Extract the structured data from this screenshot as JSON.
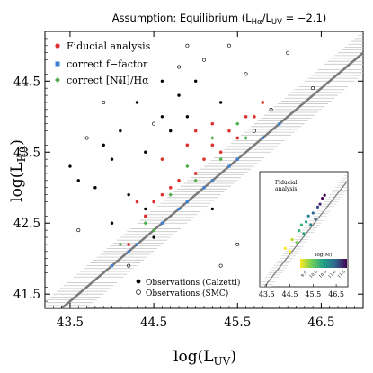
{
  "chart_data": [
    {
      "type": "scatter",
      "title": {
        "prefix": "Assumption: Equilibrium (L",
        "sub": "Hα",
        "mid": "/L",
        "sub2": "UV",
        "suffix": " = −2.1)"
      },
      "xlabel": {
        "main": "log(L",
        "sub": "UV",
        "close": ")"
      },
      "ylabel": {
        "main": "log(L",
        "sub": "Hα",
        "close": ")"
      },
      "xlim": [
        43.2,
        47.0
      ],
      "ylim": [
        41.3,
        45.2
      ],
      "xticks": [
        "43.5",
        "44.5",
        "45.5",
        "46.5"
      ],
      "yticks": [
        "41.5",
        "42.5",
        "43.5",
        "44.5"
      ],
      "relation_line": {
        "slope": 1,
        "offset": -2.1,
        "band_halfwidth": 0.3
      },
      "legend_position": "top-left",
      "series": [
        {
          "name": "Fiducial analysis",
          "marker": "circle",
          "color": "#e0302a",
          "points": [
            [
              44.2,
              42.2
            ],
            [
              44.4,
              42.6
            ],
            [
              44.6,
              42.9
            ],
            [
              44.8,
              43.1
            ],
            [
              45.0,
              43.2
            ],
            [
              45.2,
              43.6
            ],
            [
              45.4,
              43.8
            ],
            [
              45.6,
              44.0
            ],
            [
              45.0,
              43.8
            ],
            [
              44.6,
              43.4
            ],
            [
              44.9,
              43.6
            ],
            [
              45.3,
              43.5
            ],
            [
              45.5,
              43.7
            ],
            [
              44.7,
              43.0
            ],
            [
              45.1,
              43.4
            ],
            [
              45.7,
              44.0
            ],
            [
              45.8,
              44.2
            ],
            [
              44.3,
              42.8
            ],
            [
              44.5,
              42.8
            ],
            [
              45.2,
              43.9
            ]
          ]
        },
        {
          "name": "correct f−factor",
          "marker": "square",
          "color": "#3d7fd0",
          "points": [
            [
              44.0,
              41.9
            ],
            [
              44.3,
              42.2
            ],
            [
              44.6,
              42.5
            ],
            [
              44.9,
              42.8
            ],
            [
              45.2,
              43.1
            ],
            [
              45.5,
              43.4
            ],
            [
              45.8,
              43.7
            ],
            [
              46.0,
              43.9
            ],
            [
              44.2,
              42.1
            ],
            [
              44.8,
              42.7
            ],
            [
              45.1,
              43.0
            ],
            [
              45.4,
              43.3
            ]
          ]
        },
        {
          "name": "correct [NII]/Hα",
          "marker": "diamond",
          "color": "#4cae45",
          "points": [
            [
              44.1,
              42.2
            ],
            [
              44.4,
              42.5
            ],
            [
              44.7,
              42.9
            ],
            [
              45.0,
              43.1
            ],
            [
              45.3,
              43.4
            ],
            [
              45.6,
              43.7
            ],
            [
              44.5,
              42.4
            ],
            [
              44.9,
              43.3
            ],
            [
              45.2,
              43.7
            ],
            [
              45.5,
              43.9
            ]
          ]
        }
      ],
      "observations": [
        {
          "name": "Observations (Calzetti)",
          "marker": "filled-circle",
          "color": "#000000",
          "points": [
            [
              43.5,
              43.3
            ],
            [
              43.6,
              43.1
            ],
            [
              43.8,
              43.0
            ],
            [
              44.0,
              43.4
            ],
            [
              44.2,
              42.9
            ],
            [
              44.4,
              43.5
            ],
            [
              43.9,
              43.6
            ],
            [
              44.6,
              44.0
            ],
            [
              44.7,
              43.8
            ],
            [
              44.3,
              44.2
            ],
            [
              44.8,
              44.3
            ],
            [
              44.1,
              43.8
            ],
            [
              44.4,
              42.7
            ],
            [
              44.0,
              42.5
            ],
            [
              45.0,
              44.5
            ],
            [
              44.9,
              44.0
            ],
            [
              44.6,
              44.5
            ],
            [
              45.3,
              44.2
            ],
            [
              45.2,
              42.7
            ],
            [
              44.5,
              42.3
            ]
          ]
        },
        {
          "name": "Observations (SMC)",
          "marker": "open-circle",
          "color": "#000000",
          "points": [
            [
              43.7,
              43.7
            ],
            [
              43.9,
              44.2
            ],
            [
              44.1,
              44.5
            ],
            [
              44.5,
              43.9
            ],
            [
              44.8,
              44.7
            ],
            [
              45.1,
              44.8
            ],
            [
              45.6,
              44.6
            ],
            [
              45.7,
              43.8
            ],
            [
              45.9,
              44.1
            ],
            [
              46.0,
              43.0
            ],
            [
              46.2,
              42.0
            ],
            [
              45.5,
              42.2
            ],
            [
              45.3,
              41.9
            ],
            [
              44.2,
              41.9
            ],
            [
              43.6,
              42.4
            ],
            [
              45.8,
              42.5
            ],
            [
              46.4,
              44.4
            ],
            [
              46.1,
              44.9
            ],
            [
              44.9,
              45.0
            ],
            [
              45.4,
              45.0
            ]
          ]
        }
      ]
    },
    {
      "type": "scatter",
      "title": {
        "line1": "Fiducial",
        "line2": "analysis"
      },
      "xlim": [
        43.2,
        47.0
      ],
      "ylim": [
        41.3,
        45.2
      ],
      "xticks": [
        "43.5",
        "44.5",
        "45.5",
        "46.5"
      ],
      "colorbar": {
        "label": "log(M)",
        "ticks": [
          "9.5",
          "10.0",
          "10.5",
          "11.0",
          "11.5"
        ],
        "colors": [
          "#fde725",
          "#b5de2b",
          "#6ece58",
          "#35b779",
          "#1f9e89",
          "#26828e",
          "#31688e",
          "#3e4989",
          "#482878",
          "#440154"
        ]
      },
      "series": [
        {
          "name": "colored by log(M)",
          "points": [
            [
              44.3,
              42.6,
              9.6
            ],
            [
              44.6,
              42.9,
              9.8
            ],
            [
              44.9,
              43.2,
              10.1
            ],
            [
              45.2,
              43.5,
              10.4
            ],
            [
              45.5,
              43.8,
              10.8
            ],
            [
              45.7,
              44.0,
              11.1
            ],
            [
              45.9,
              44.3,
              11.4
            ],
            [
              44.5,
              42.5,
              9.5
            ],
            [
              44.8,
              42.8,
              9.9
            ],
            [
              45.1,
              43.1,
              10.3
            ],
            [
              45.4,
              43.4,
              10.6
            ],
            [
              45.6,
              43.6,
              10.9
            ],
            [
              45.0,
              43.4,
              10.2
            ],
            [
              45.3,
              43.7,
              10.7
            ],
            [
              45.8,
              44.1,
              11.2
            ],
            [
              46.0,
              44.4,
              11.5
            ]
          ]
        }
      ]
    }
  ]
}
